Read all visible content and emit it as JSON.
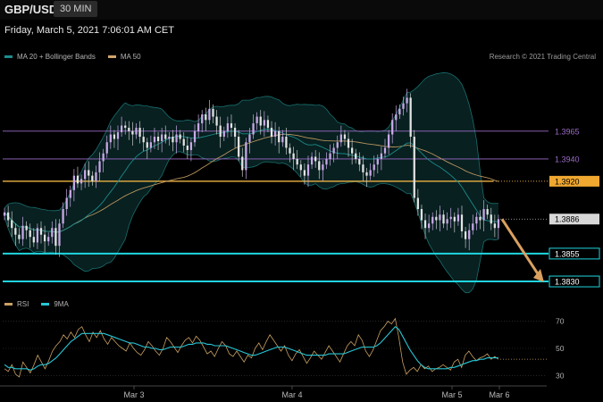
{
  "header": {
    "symbol": "GBP/USD",
    "timeframe": "30 MIN",
    "datetime": "Friday, March 5, 2021 7:06:01 AM CET",
    "credit": "Research © 2021 Trading Central"
  },
  "legend_main": [
    {
      "label": "MA 20 + Bollinger Bands",
      "color": "#1e8c8c"
    },
    {
      "label": "MA 50",
      "color": "#d2a46a"
    }
  ],
  "legend_rsi": [
    {
      "label": "RSI",
      "color": "#c9a062"
    },
    {
      "label": "9MA",
      "color": "#27c6d6"
    }
  ],
  "chart_data": [
    {
      "type": "candlestick",
      "title": "GBP/USD",
      "ylim": [
        1.3818,
        1.4025
      ],
      "x_ticks": [
        "Mar 3",
        "Mar 4",
        "Mar 5",
        "Mar 6"
      ],
      "levels": [
        {
          "value": 1.3965,
          "label": "1.3965",
          "style": "resistance",
          "color": "#9a6bc7"
        },
        {
          "value": 1.394,
          "label": "1.3940",
          "style": "resistance",
          "color": "#9a6bc7"
        },
        {
          "value": 1.392,
          "label": "1.3920",
          "style": "pivot",
          "color": "#d9a53f"
        },
        {
          "value": 1.3886,
          "label": "1.3886",
          "style": "last-price",
          "color": "#d0d0d0"
        },
        {
          "value": 1.3855,
          "label": "1.3855",
          "style": "support",
          "color": "#1fd6e0"
        },
        {
          "value": 1.383,
          "label": "1.3830",
          "style": "support",
          "color": "#1fd6e0"
        }
      ],
      "projection": {
        "from": 1.3886,
        "to": 1.383,
        "color": "#d9a060"
      },
      "closes": [
        1.3892,
        1.3885,
        1.3878,
        1.3872,
        1.3868,
        1.388,
        1.3876,
        1.387,
        1.3865,
        1.3878,
        1.3872,
        1.3866,
        1.387,
        1.3878,
        1.3862,
        1.3882,
        1.3895,
        1.3905,
        1.3912,
        1.3925,
        1.3918,
        1.3922,
        1.393,
        1.3925,
        1.392,
        1.3928,
        1.3938,
        1.3945,
        1.3955,
        1.3962,
        1.3958,
        1.3964,
        1.397,
        1.3968,
        1.3965,
        1.3962,
        1.3968,
        1.396,
        1.3955,
        1.395,
        1.3955,
        1.396,
        1.3956,
        1.3962,
        1.3958,
        1.396,
        1.3955,
        1.3962,
        1.3958,
        1.3952,
        1.3948,
        1.3955,
        1.3965,
        1.3972,
        1.398,
        1.3975,
        1.3985,
        1.3978,
        1.397,
        1.396,
        1.3965,
        1.3972,
        1.3968,
        1.396,
        1.3942,
        1.393,
        1.3955,
        1.3962,
        1.3972,
        1.3978,
        1.397,
        1.3975,
        1.3968,
        1.396,
        1.3965,
        1.3955,
        1.396,
        1.395,
        1.3945,
        1.394,
        1.3935,
        1.393,
        1.3925,
        1.3935,
        1.3942,
        1.3938,
        1.393,
        1.3935,
        1.394,
        1.3945,
        1.395,
        1.3955,
        1.3962,
        1.3958,
        1.395,
        1.3945,
        1.394,
        1.3935,
        1.3928,
        1.3925,
        1.393,
        1.3935,
        1.394,
        1.3945,
        1.395,
        1.3962,
        1.3975,
        1.398,
        1.3985,
        1.399,
        1.3995,
        1.396,
        1.3905,
        1.3895,
        1.3885,
        1.3878,
        1.3882,
        1.3888,
        1.3885,
        1.389,
        1.3882,
        1.3886,
        1.3888,
        1.3884,
        1.389,
        1.3875,
        1.3868,
        1.3876,
        1.3882,
        1.3888,
        1.3885,
        1.3895,
        1.389,
        1.3882,
        1.3878,
        1.3886
      ]
    },
    {
      "type": "line",
      "title": "RSI",
      "ylim": [
        25,
        75
      ],
      "y_ticks": [
        30,
        50,
        70
      ],
      "series": [
        {
          "name": "RSI",
          "color": "#c9a062",
          "values": [
            35,
            33,
            38,
            31,
            29,
            40,
            36,
            32,
            38,
            45,
            40,
            35,
            41,
            48,
            52,
            55,
            60,
            57,
            62,
            58,
            64,
            66,
            60,
            55,
            62,
            58,
            63,
            57,
            53,
            58,
            55,
            52,
            50,
            48,
            54,
            50,
            47,
            45,
            49,
            55,
            52,
            48,
            45,
            50,
            58,
            55,
            51,
            47,
            52,
            56,
            58,
            54,
            59,
            56,
            51,
            46,
            48,
            44,
            50,
            55,
            52,
            46,
            44,
            48,
            44,
            40,
            45,
            43,
            50,
            54,
            49,
            55,
            60,
            56,
            52,
            48,
            52,
            45,
            41,
            46,
            49,
            44,
            39,
            43,
            48,
            45,
            42,
            47,
            52,
            48,
            44,
            40,
            46,
            52,
            55,
            52,
            60,
            56,
            48,
            44,
            49,
            56,
            63,
            66,
            70,
            68,
            72,
            58,
            40,
            31,
            34,
            36,
            33,
            38,
            35,
            37,
            33,
            35,
            36,
            38,
            36,
            34,
            40,
            42,
            36,
            45,
            48,
            44,
            41,
            43,
            44,
            46,
            42,
            44,
            42
          ]
        },
        {
          "name": "9MA",
          "color": "#27c6d6",
          "values": [
            38,
            36,
            36,
            35,
            35,
            35,
            35,
            34,
            35,
            37,
            38,
            38,
            39,
            41,
            43,
            46,
            49,
            52,
            55,
            57,
            59,
            61,
            61,
            61,
            61,
            61,
            61,
            61,
            60,
            59,
            58,
            57,
            56,
            55,
            54,
            54,
            53,
            52,
            51,
            51,
            50,
            50,
            49,
            49,
            50,
            51,
            51,
            51,
            51,
            52,
            53,
            53,
            54,
            54,
            54,
            53,
            53,
            52,
            52,
            52,
            52,
            51,
            50,
            49,
            48,
            47,
            46,
            45,
            45,
            46,
            47,
            48,
            49,
            50,
            51,
            51,
            51,
            50,
            49,
            48,
            47,
            46,
            45,
            45,
            45,
            45,
            45,
            45,
            46,
            46,
            46,
            46,
            46,
            47,
            48,
            49,
            50,
            51,
            51,
            51,
            51,
            52,
            54,
            57,
            60,
            63,
            66,
            64,
            59,
            54,
            49,
            45,
            41,
            38,
            36,
            35,
            35,
            35,
            35,
            35,
            35,
            36,
            36,
            37,
            38,
            39,
            40,
            41,
            41,
            42,
            42,
            43,
            43,
            43,
            43
          ]
        }
      ]
    }
  ]
}
